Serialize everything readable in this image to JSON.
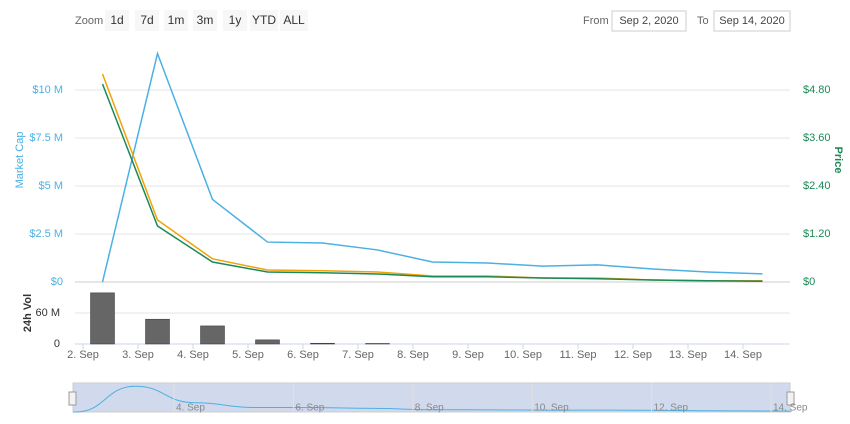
{
  "range_selector": {
    "zoom_label": "Zoom",
    "buttons": [
      "1d",
      "7d",
      "1m",
      "3m",
      "1y",
      "YTD",
      "ALL"
    ],
    "from_label": "From",
    "from_value": "Sep 2, 2020",
    "to_label": "To",
    "to_value": "Sep 14, 2020"
  },
  "chart_data": {
    "type": "line",
    "categories": [
      "2. Sep",
      "3. Sep",
      "4. Sep",
      "5. Sep",
      "6. Sep",
      "7. Sep",
      "8. Sep",
      "9. Sep",
      "10. Sep",
      "11. Sep",
      "12. Sep",
      "13. Sep",
      "14. Sep"
    ],
    "ylabel": "Market Cap",
    "y2label": "Price",
    "ylim": [
      0,
      12500000
    ],
    "yticks": [
      {
        "value": 0,
        "label": "$0"
      },
      {
        "value": 2500000,
        "label": "$2.5 M"
      },
      {
        "value": 5000000,
        "label": "$5 M"
      },
      {
        "value": 7500000,
        "label": "$7.5 M"
      },
      {
        "value": 10000000,
        "label": "$10 M"
      }
    ],
    "y2lim": [
      0,
      6
    ],
    "y2ticks": [
      {
        "value": 0,
        "label": "$0"
      },
      {
        "value": 1.2,
        "label": "$1.20"
      },
      {
        "value": 2.4,
        "label": "$2.40"
      },
      {
        "value": 3.6,
        "label": "$3.60"
      },
      {
        "value": 4.8,
        "label": "$4.80"
      }
    ],
    "grid": true,
    "series": [
      {
        "color": "#4cb0e3",
        "axis": "y",
        "values": [
          0,
          11900000,
          4300000,
          2080000,
          2030000,
          1670000,
          1040000,
          990000,
          830000,
          890000,
          680000,
          520000,
          420000
        ]
      },
      {
        "color": "#f0a30a",
        "axis": "y2",
        "values": [
          5.2,
          1.55,
          0.58,
          0.3,
          0.28,
          0.25,
          0.15,
          0.15,
          0.1,
          0.1,
          0.05,
          0.03,
          0.03
        ]
      },
      {
        "color": "#1b8a56",
        "axis": "y2",
        "values": [
          4.95,
          1.4,
          0.5,
          0.25,
          0.23,
          0.2,
          0.13,
          0.13,
          0.1,
          0.08,
          0.05,
          0.03,
          0.02
        ]
      }
    ],
    "volume": {
      "type": "bar",
      "ylabel": "24h Vol",
      "color": "#666666",
      "ylim": [
        0,
        120000000
      ],
      "yticks": [
        0,
        {
          "value": 60000000,
          "label": "60 M"
        }
      ],
      "values": [
        99000000,
        48000000,
        35000000,
        8000000,
        1500000,
        1000000,
        0,
        0,
        0,
        0,
        0,
        0,
        0
      ]
    }
  }
}
